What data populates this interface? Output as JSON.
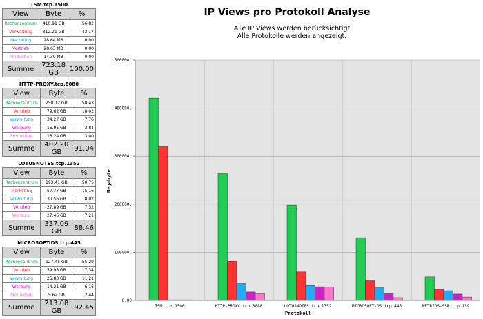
{
  "tables": [
    {
      "title": "TSM.tcp.1500",
      "headers": [
        "View",
        "Byte",
        "%"
      ],
      "rows": [
        {
          "view": "Rechenzentrum",
          "byte": "410.91 GB",
          "pct": "56.82",
          "color": "#00b050"
        },
        {
          "view": "Verwaltung",
          "byte": "312.21 GB",
          "pct": "43.17",
          "color": "#ff2020"
        },
        {
          "view": "Marketing",
          "byte": "28.64 MB",
          "pct": "0.00",
          "color": "#00b0f0"
        },
        {
          "view": "Vertrieb",
          "byte": "28.63 MB",
          "pct": "0.00",
          "color": "#c000c0"
        },
        {
          "view": "Produktion",
          "byte": "14.30 MB",
          "pct": "0.00",
          "color": "#ff66cc"
        }
      ],
      "sum_label": "Summe",
      "sum_byte": "723.18 GB",
      "sum_pct": "100.00"
    },
    {
      "title": "HTTP-PROXY.tcp.8080",
      "headers": [
        "View",
        "Byte",
        "%"
      ],
      "rows": [
        {
          "view": "Rechenzentrum",
          "byte": "258.12 GB",
          "pct": "58.43",
          "color": "#00b050"
        },
        {
          "view": "Vertrieb",
          "byte": "79.62 GB",
          "pct": "18.02",
          "color": "#ff2020"
        },
        {
          "view": "Verwaltung",
          "byte": "34.27 GB",
          "pct": "7.76",
          "color": "#00b0f0"
        },
        {
          "view": "Werbung",
          "byte": "16.95 GB",
          "pct": "3.84",
          "color": "#c000c0"
        },
        {
          "view": "Produktion",
          "byte": "13.24 GB",
          "pct": "3.00",
          "color": "#ff66cc"
        }
      ],
      "sum_label": "Summe",
      "sum_byte": "402.20 GB",
      "sum_pct": "91.04"
    },
    {
      "title": "LOTUSNOTES.tcp.1352",
      "headers": [
        "View",
        "Byte",
        "%"
      ],
      "rows": [
        {
          "view": "Rechenzentrum",
          "byte": "193.41 GB",
          "pct": "50.75",
          "color": "#00b050"
        },
        {
          "view": "Marketing",
          "byte": "57.77 GB",
          "pct": "15.16",
          "color": "#ff2020"
        },
        {
          "view": "Verwaltung",
          "byte": "30.56 GB",
          "pct": "8.02",
          "color": "#00b0f0"
        },
        {
          "view": "Vertrieb",
          "byte": "27.89 GB",
          "pct": "7.32",
          "color": "#c000c0"
        },
        {
          "view": "Werbung",
          "byte": "27.46 GB",
          "pct": "7.21",
          "color": "#ff66cc"
        }
      ],
      "sum_label": "Summe",
      "sum_byte": "337.09 GB",
      "sum_pct": "88.46"
    },
    {
      "title": "MICROSOFT-DS.tcp.445",
      "headers": [
        "View",
        "Byte",
        "%"
      ],
      "rows": [
        {
          "view": "Rechenzentrum",
          "byte": "127.45 GB",
          "pct": "55.29",
          "color": "#00b050"
        },
        {
          "view": "Vertrieb",
          "byte": "39.98 GB",
          "pct": "17.34",
          "color": "#ff2020"
        },
        {
          "view": "Verwaltung",
          "byte": "25.83 GB",
          "pct": "11.21",
          "color": "#00b0f0"
        },
        {
          "view": "Werbung",
          "byte": "14.21 GB",
          "pct": "6.16",
          "color": "#c000c0"
        },
        {
          "view": "Produktion",
          "byte": "5.62 GB",
          "pct": "2.44",
          "color": "#ff66cc"
        }
      ],
      "sum_label": "Summe",
      "sum_byte": "213.08 GB",
      "sum_pct": "92.45"
    }
  ],
  "chart_data": {
    "type": "bar",
    "title": "IP Views pro Protokoll Analyse",
    "subtitle_lines": [
      "Alle IP Views werden berücksichtigt",
      "Alle Protokolle werden angezeigt."
    ],
    "xlabel": "Protokoll",
    "ylabel": "Megabyte",
    "ylim": [
      0,
      500000
    ],
    "y_ticks": [
      0,
      100000,
      200000,
      300000,
      400000,
      500000
    ],
    "y_tick_labels": [
      "0.00",
      "100000.",
      "200000.",
      "300000.",
      "400000.",
      "500000."
    ],
    "categories": [
      "TSM.tcp.1500",
      "HTTP-PROXY.tcp.8080",
      "LOTUSNOTES.tcp.1352",
      "MICROSOFT-DS.tcp.445",
      "NETBIOS-SSN.tcp.139"
    ],
    "bar_colors": [
      "#22cc55",
      "#ff3333",
      "#22aaff",
      "#cc22cc",
      "#ff77cc"
    ],
    "groups": [
      [
        420767,
        319703,
        28.64,
        28.63,
        14.3
      ],
      [
        264315,
        81531,
        35092,
        17357,
        13558
      ],
      [
        198052,
        59156,
        31293,
        28559,
        28119
      ],
      [
        130509,
        40940,
        26450,
        14551,
        5755
      ],
      [
        49000,
        23000,
        20000,
        13000,
        7000
      ]
    ],
    "grid": true
  }
}
